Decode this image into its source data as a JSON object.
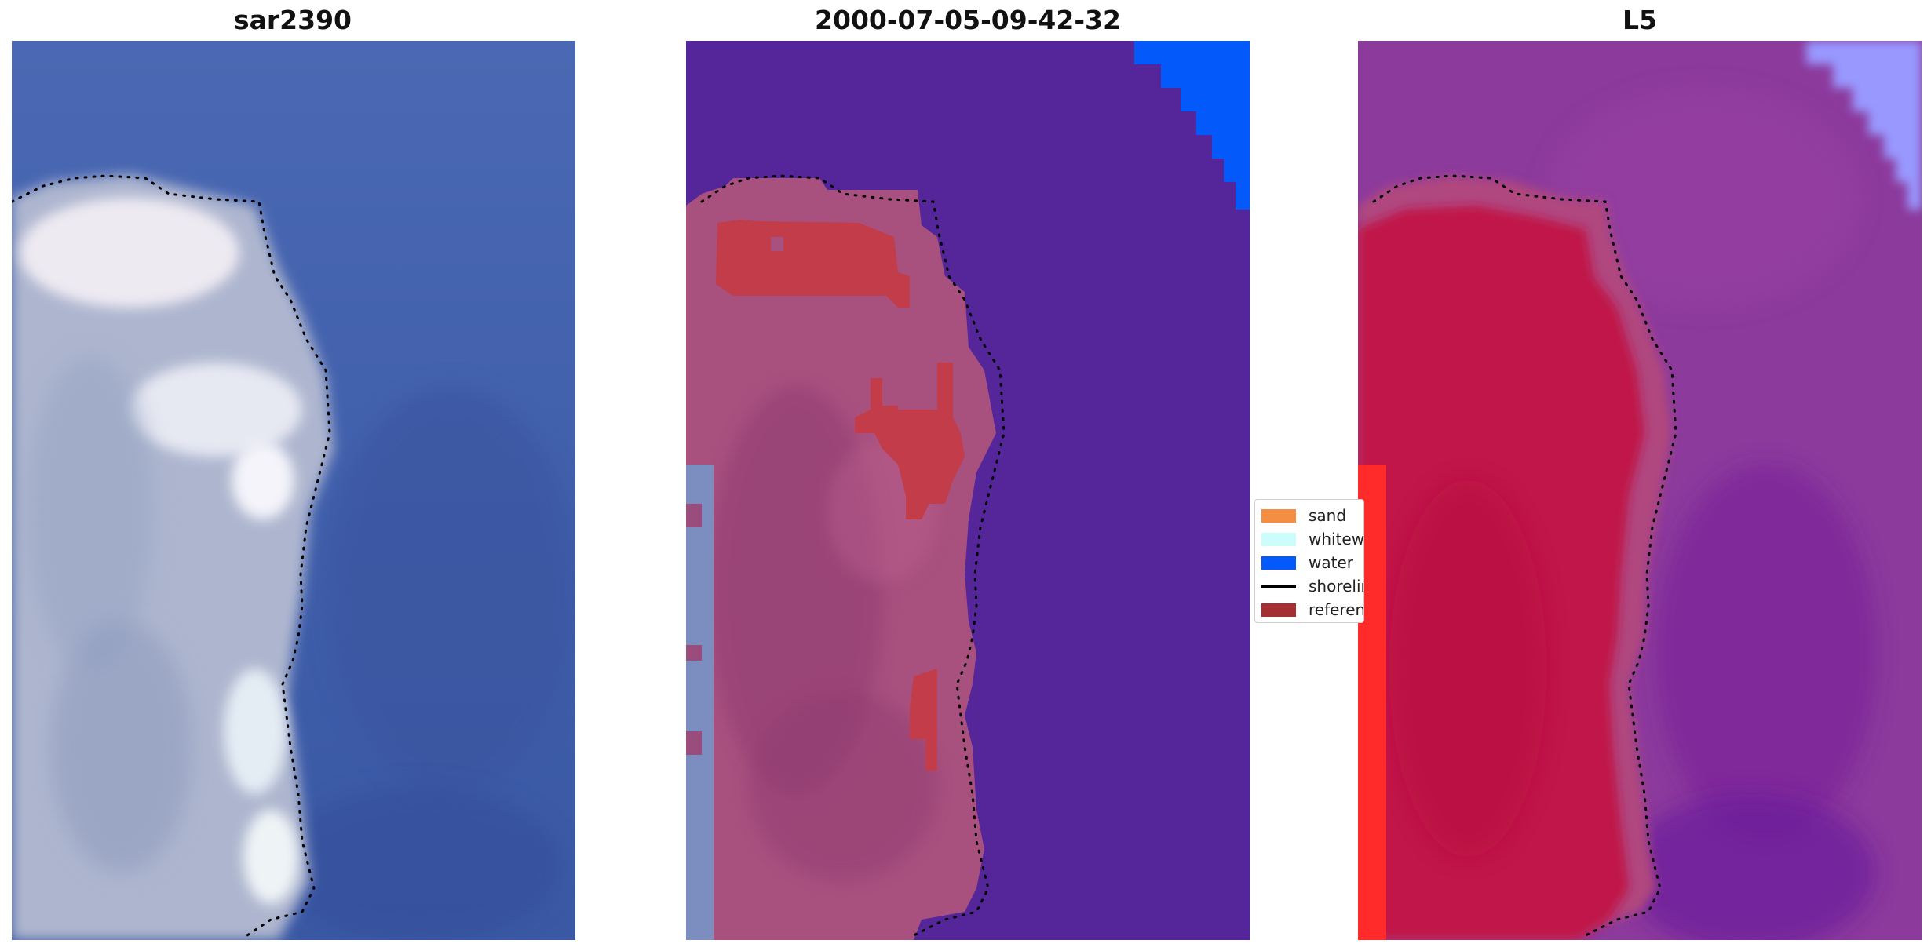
{
  "panels": [
    {
      "title": "sar2390"
    },
    {
      "title": "2000-07-05-09-42-32"
    },
    {
      "title": "L5"
    }
  ],
  "legend": {
    "items": [
      {
        "label": "sand",
        "color": "#f68e42",
        "kind": "patch"
      },
      {
        "label": "whitewater",
        "color": "#cbfdfb",
        "kind": "patch"
      },
      {
        "label": "water",
        "color": "#0459fa",
        "kind": "patch"
      },
      {
        "label": "shoreline",
        "color": "#000000",
        "kind": "line"
      },
      {
        "label": "reference",
        "color": "#a52e32",
        "kind": "patch"
      }
    ]
  },
  "colors": {
    "ocean_rgb": "#4a6ab4",
    "ocean_class": "#55259a",
    "land_class": "#a8507e",
    "water_class": "#0459fa",
    "reference_class": "#c23c4a",
    "ocean_l5": "#8c3a9c",
    "land_l5": "#c01848",
    "land_l5_bright": "#ff2a2a",
    "water_l5": "#9898ff"
  }
}
